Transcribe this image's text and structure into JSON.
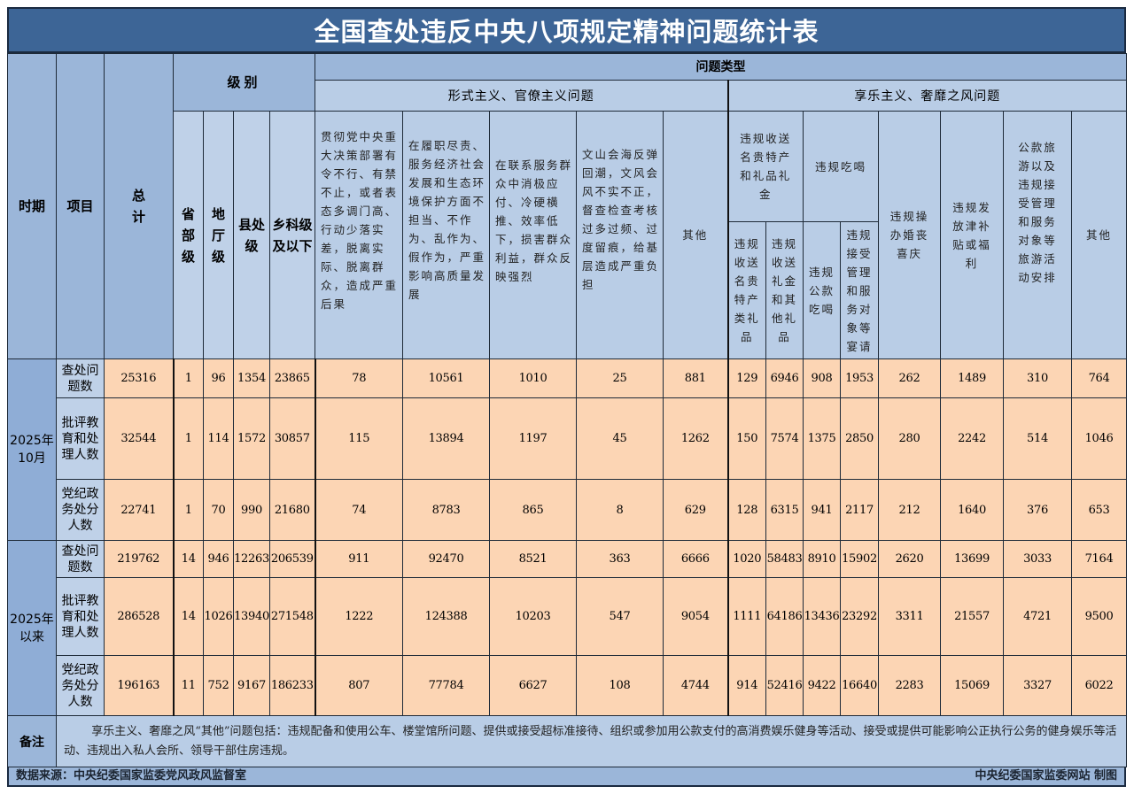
{
  "title": "全国查处违反中央八项规定精神问题统计表",
  "header": {
    "period": "时期",
    "item": "项目",
    "total": "总计",
    "level": "级别",
    "levels": [
      "省部级",
      "地厅级",
      "县处级",
      "乡科级及以下"
    ],
    "problem_type": "问题类型",
    "formalism": "形式主义、官僚主义问题",
    "formalism_cols": [
      "贯彻党中央重大决策部署有令不行、有禁不止，或者表态多调门高、行动少落实差，脱离实际、脱离群众，造成严重后果",
      "在履职尽责、服务经济社会发展和生态环境保护方面不担当、不作为、乱作为、假作为，严重影响高质量发展",
      "在联系服务群众中消极应付、冷硬横推、效率低下，损害群众利益，群众反映强烈",
      "文山会海反弹回潮，文风会风不实不正，督查检查考核过多过频、过度留痕，给基层造成严重负担",
      "其他"
    ],
    "hedonism": "享乐主义、奢靡之风问题",
    "gifts_group": "违规收送名贵特产和礼品礼金",
    "gifts_cols": [
      "违规收送名贵特产类礼品",
      "违规收送礼金和其他礼品"
    ],
    "dining_group": "违规吃喝",
    "dining_cols": [
      "违规公款吃喝",
      "违规接受管理和服务对象等宴请"
    ],
    "hedonism_cols": [
      "违规操办婚丧喜庆",
      "违规发放津补贴或福利",
      "公款旅游以及违规接受管理和服务对象等旅游活动安排",
      "其他"
    ]
  },
  "periods": [
    {
      "label": "2025年10月",
      "rows": [
        {
          "item": "查处问题数",
          "values": [
            "25316",
            "1",
            "96",
            "1354",
            "23865",
            "78",
            "10561",
            "1010",
            "25",
            "881",
            "129",
            "6946",
            "908",
            "1953",
            "262",
            "1489",
            "310",
            "764"
          ]
        },
        {
          "item": "批评教育和处理人数",
          "values": [
            "32544",
            "1",
            "114",
            "1572",
            "30857",
            "115",
            "13894",
            "1197",
            "45",
            "1262",
            "150",
            "7574",
            "1375",
            "2850",
            "280",
            "2242",
            "514",
            "1046"
          ]
        },
        {
          "item": "党纪政务处分人数",
          "values": [
            "22741",
            "1",
            "70",
            "990",
            "21680",
            "74",
            "8783",
            "865",
            "8",
            "629",
            "128",
            "6315",
            "941",
            "2117",
            "212",
            "1640",
            "376",
            "653"
          ]
        }
      ]
    },
    {
      "label": "2025年以来",
      "rows": [
        {
          "item": "查处问题数",
          "values": [
            "219762",
            "14",
            "946",
            "12263",
            "206539",
            "911",
            "92470",
            "8521",
            "363",
            "6666",
            "1020",
            "58483",
            "8910",
            "15902",
            "2620",
            "13699",
            "3033",
            "7164"
          ]
        },
        {
          "item": "批评教育和处理人数",
          "values": [
            "286528",
            "14",
            "1026",
            "13940",
            "271548",
            "1222",
            "124388",
            "10203",
            "547",
            "9054",
            "1111",
            "64186",
            "13436",
            "23292",
            "3311",
            "21557",
            "4721",
            "9500"
          ]
        },
        {
          "item": "党纪政务处分人数",
          "values": [
            "196163",
            "11",
            "752",
            "9167",
            "186233",
            "807",
            "77784",
            "6627",
            "108",
            "4744",
            "914",
            "52416",
            "9422",
            "16640",
            "2283",
            "15069",
            "3327",
            "6022"
          ]
        }
      ]
    }
  ],
  "note_label": "备注",
  "note_text": "享乐主义、奢靡之风“其他”问题包括：违规配备和使用公车、楼堂馆所问题、提供或接受超标准接待、组织或参加用公款支付的高消费娱乐健身等活动、接受或提供可能影响公正执行公务的健身娱乐等活动、违规出入私人会所、领导干部住房违规。",
  "source": "数据来源：中央纪委国家监委党风政风监督室",
  "credit": "中央纪委国家监委网站 制图",
  "colors": {
    "title_bg": "#3d6596",
    "header_bg": "#b9cde6",
    "period_bg": "#8fadd6",
    "cell_bg": "#fcd5b4"
  }
}
